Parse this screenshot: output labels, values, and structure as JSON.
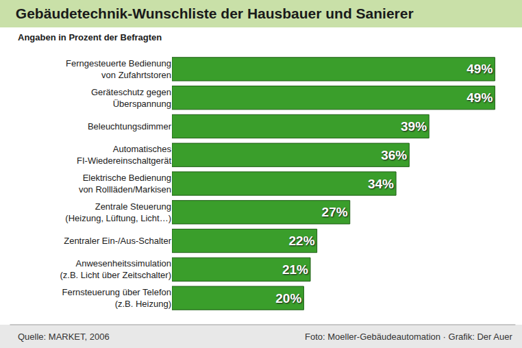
{
  "chart_data": {
    "type": "bar",
    "orientation": "horizontal",
    "title": "Gebäudetechnik-Wunschliste der Hausbauer und Sanierer",
    "subtitle": "Angaben in Prozent der Befragten",
    "categories": [
      "Ferngesteuerte Bedienung von Zufahrtstoren",
      "Geräteschutz gegen Überspannung",
      "Beleuchtungsdimmer",
      "Automatisches FI-Wiedereinschaltgerät",
      "Elektrische Bedienung von Rollläden/Markisen",
      "Zentrale Steuerung (Heizung, Lüftung, Licht…)",
      "Zentraler Ein-/Aus-Schalter",
      "Anwesenheitssimulation (z.B. Licht über Zeitschalter)",
      "Fernsteuerung über Telefon (z.B. Heizung)"
    ],
    "values": [
      49,
      49,
      39,
      36,
      34,
      27,
      22,
      21,
      20
    ],
    "value_labels": [
      "49%",
      "49%",
      "39%",
      "36%",
      "34%",
      "27%",
      "22%",
      "21%",
      "20%"
    ],
    "data_labels": true,
    "color": "#3a9e2b",
    "xlim": [
      0,
      50
    ],
    "grid": false,
    "tick_labels": "y",
    "annotations": [
      "Quelle: MARKET, 2006",
      "Foto: Moeller-Gebäudeautomation · Grafik: Der Auer"
    ]
  }
}
